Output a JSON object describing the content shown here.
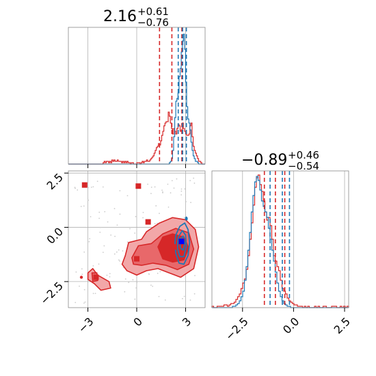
{
  "colors": {
    "red": "#d62728",
    "blue": "#1f77b4",
    "grid": "#b0b0b0",
    "frame": "#888888",
    "scatter": "#cccccc",
    "fill_light": "#f2a7a8",
    "fill_mid": "#e8686a",
    "fill_dark": "#d62728"
  },
  "chart_data": {
    "type": "corner",
    "panels": [
      {
        "name": "x-marginal",
        "type": "histogram",
        "title": {
          "value": "2.16",
          "upper": "+0.61",
          "lower": "−0.76"
        },
        "xlim": [
          -4.2,
          4.2
        ],
        "ylim": [
          0,
          1.0
        ],
        "grid_x": [
          -3,
          0,
          3
        ],
        "series": [
          {
            "color": "#d62728",
            "counts": [
              0,
              0,
              0,
              0,
              0,
              0,
              0,
              0,
              0,
              0,
              0,
              0,
              0,
              0,
              0,
              0,
              0,
              0,
              0,
              0,
              0,
              0,
              0,
              0,
              0,
              0,
              0,
              0,
              0,
              0,
              0,
              0,
              0.01,
              0.02,
              0.01,
              0.02,
              0.02,
              0.01,
              0.02,
              0.01,
              0.03,
              0.02,
              0.03,
              0.02,
              0.02,
              0.03,
              0.02,
              0.02,
              0.02,
              0.01,
              0.02,
              0.01,
              0.02,
              0.01,
              0.02,
              0.01,
              0.01,
              0,
              0.01,
              0.01,
              0,
              0,
              0,
              0.01,
              0.01,
              0.01,
              0,
              0.01,
              0.02,
              0.01,
              0.02,
              0.02,
              0.03,
              0.02,
              0.02,
              0.03,
              0.04,
              0.05,
              0.06,
              0.08,
              0.1,
              0.12,
              0.13,
              0.15,
              0.14,
              0.17,
              0.21,
              0.24,
              0.28,
              0.3,
              0.31,
              0.31,
              0.38,
              0.35,
              0.3,
              0.26,
              0.22,
              0.26,
              0.24,
              0.22,
              0.26,
              0.29,
              0.28,
              0.24,
              0.25,
              0.3,
              0.26,
              0.24,
              0.22,
              0.21,
              0.21,
              0.22,
              0.28,
              0.3,
              0.2,
              0.13,
              0.1,
              0.08,
              0.06,
              0.04,
              0.02,
              0.02,
              0.01,
              0,
              0,
              0
            ]
          },
          {
            "color": "#1f77b4",
            "counts": [
              0,
              0,
              0,
              0,
              0,
              0,
              0,
              0,
              0,
              0,
              0,
              0,
              0,
              0,
              0,
              0,
              0,
              0,
              0,
              0,
              0,
              0,
              0,
              0,
              0,
              0,
              0,
              0,
              0,
              0,
              0,
              0,
              0,
              0,
              0,
              0,
              0,
              0,
              0,
              0,
              0,
              0,
              0,
              0,
              0,
              0,
              0,
              0,
              0,
              0,
              0,
              0,
              0,
              0,
              0,
              0,
              0,
              0,
              0,
              0,
              0,
              0,
              0,
              0,
              0,
              0,
              0,
              0,
              0,
              0,
              0,
              0,
              0,
              0,
              0,
              0,
              0,
              0,
              0,
              0,
              0,
              0,
              0,
              0,
              0,
              0,
              0,
              0,
              0,
              0,
              0,
              0,
              0,
              0.01,
              0.02,
              0.04,
              0.1,
              0.2,
              0.34,
              0.46,
              0.48,
              0.52,
              0.64,
              0.7,
              0.82,
              0.9,
              0.95,
              0.84,
              0.6,
              0.42,
              0.33,
              0.3,
              0.25,
              0.16,
              0.1,
              0.06,
              0.04,
              0.02,
              0.02,
              0.01,
              0,
              0,
              0,
              0,
              0,
              0
            ]
          }
        ],
        "quantile_lines": [
          {
            "color": "#d62728",
            "x": [
              1.4,
              2.16,
              2.77
            ]
          },
          {
            "color": "#1f77b4",
            "x": [
              2.55,
              2.82,
              3.05
            ]
          }
        ]
      },
      {
        "name": "joint",
        "type": "contour",
        "xlim": [
          -4.2,
          4.2
        ],
        "ylim": [
          -3.7,
          2.6
        ],
        "xticks": [
          -3,
          0,
          3
        ],
        "xtick_labels": [
          "−3",
          "0",
          "3"
        ],
        "yticks": [
          2.5,
          0.0,
          -2.5
        ],
        "ytick_labels": [
          "2.5",
          "0.0",
          "−2.5"
        ],
        "grid_x": [
          -3,
          0,
          3
        ],
        "grid_y": [
          2.5,
          0,
          -2.5
        ],
        "red_markers": [
          [
            -3.2,
            1.95
          ],
          [
            0.1,
            1.9
          ],
          [
            0.7,
            0.25
          ],
          [
            0.0,
            -1.45
          ],
          [
            -2.5,
            -2.3
          ],
          [
            2.3,
            -0.9
          ]
        ],
        "blue_markers": [
          [
            2.75,
            -0.65
          ]
        ]
      },
      {
        "name": "y-marginal",
        "type": "histogram",
        "title": {
          "value": "−0.89",
          "upper": "+0.46",
          "lower": "−0.54"
        },
        "xlim": [
          -4.0,
          2.7
        ],
        "ylim": [
          0,
          1.0
        ],
        "xticks": [
          -2.5,
          0.0,
          2.5
        ],
        "xtick_labels": [
          "−2.5",
          "0.0",
          "2.5"
        ],
        "grid_x": [
          -2.5,
          0,
          2.5
        ],
        "series": [
          {
            "color": "#d62728",
            "counts": [
              0.01,
              0,
              0,
              0.01,
              0.01,
              0.01,
              0.01,
              0.02,
              0.02,
              0.01,
              0.02,
              0.03,
              0.03,
              0.04,
              0.06,
              0.08,
              0.1,
              0.14,
              0.18,
              0.21,
              0.28,
              0.38,
              0.5,
              0.62,
              0.75,
              0.88,
              0.95,
              0.97,
              0.9,
              0.85,
              0.78,
              0.7,
              0.64,
              0.66,
              0.6,
              0.5,
              0.38,
              0.34,
              0.3,
              0.27,
              0.2,
              0.14,
              0.12,
              0.1,
              0.07,
              0.05,
              0.04,
              0.03,
              0.02,
              0.02,
              0.01,
              0.01,
              0.01,
              0,
              0.01,
              0,
              0.01,
              0,
              0,
              0,
              0.01,
              0,
              0.01,
              0,
              0,
              0.01,
              0.01,
              0,
              0,
              0,
              0.01,
              0.01,
              0.01,
              0,
              0,
              0.01,
              0,
              0.01,
              0,
              0.01
            ]
          },
          {
            "color": "#1f77b4",
            "counts": [
              0,
              0,
              0,
              0,
              0,
              0,
              0,
              0,
              0,
              0,
              0,
              0,
              0.01,
              0.01,
              0.02,
              0.03,
              0.05,
              0.08,
              0.12,
              0.2,
              0.3,
              0.42,
              0.55,
              0.7,
              0.82,
              0.92,
              0.96,
              0.93,
              0.86,
              0.78,
              0.74,
              0.7,
              0.66,
              0.58,
              0.5,
              0.42,
              0.34,
              0.26,
              0.18,
              0.12,
              0.08,
              0.05,
              0.03,
              0.02,
              0.01,
              0.01,
              0,
              0,
              0,
              0,
              0,
              0,
              0,
              0,
              0,
              0,
              0,
              0,
              0,
              0,
              0,
              0,
              0,
              0,
              0,
              0,
              0,
              0,
              0,
              0,
              0,
              0,
              0,
              0,
              0,
              0,
              0,
              0,
              0,
              0
            ]
          }
        ],
        "quantile_lines": [
          {
            "color": "#d62728",
            "x": [
              -1.43,
              -0.89,
              -0.43
            ]
          },
          {
            "color": "#1f77b4",
            "x": [
              -1.15,
              -0.55,
              -0.2
            ]
          }
        ]
      }
    ]
  }
}
